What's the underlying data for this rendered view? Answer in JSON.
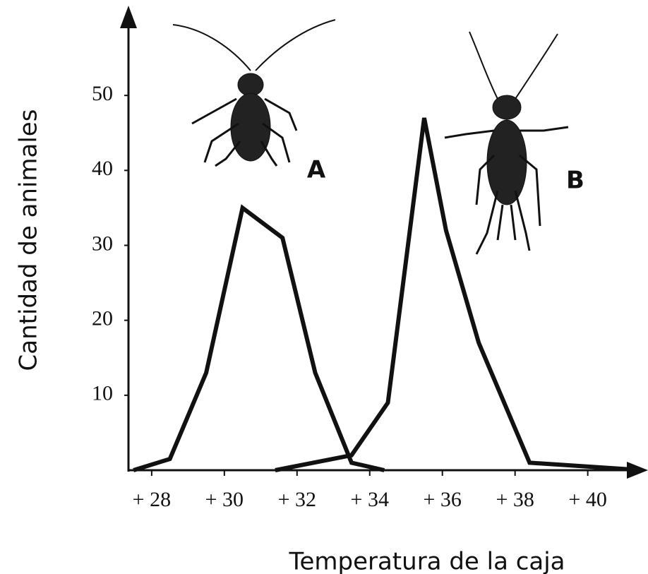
{
  "chart_data": {
    "type": "line",
    "x_label": "Temperatura de la caja",
    "y_label": "Cantidad de animales",
    "xlim": [
      27.4,
      41.6
    ],
    "ylim": [
      0,
      60
    ],
    "xticks": [
      {
        "value": 28,
        "label": "+ 28"
      },
      {
        "value": 30,
        "label": "+ 30"
      },
      {
        "value": 32,
        "label": "+ 32"
      },
      {
        "value": 34,
        "label": "+ 34"
      },
      {
        "value": 36,
        "label": "+ 36"
      },
      {
        "value": 38,
        "label": "+ 38"
      },
      {
        "value": 40,
        "label": "+ 40"
      }
    ],
    "yticks": [
      10,
      20,
      30,
      40,
      50
    ],
    "series": [
      {
        "name": "A",
        "color": "#111111",
        "x": [
          27.5,
          28.5,
          29.5,
          30.5,
          31.6,
          32.5,
          33.5,
          34.4
        ],
        "values": [
          0,
          1.5,
          13,
          35,
          31,
          13,
          1,
          0
        ]
      },
      {
        "name": "B",
        "color": "#111111",
        "x": [
          31.4,
          33.5,
          34.5,
          35.5,
          36.1,
          37,
          38.4,
          41.5
        ],
        "values": [
          0,
          2,
          9,
          47,
          32,
          17,
          1,
          0
        ]
      }
    ]
  }
}
